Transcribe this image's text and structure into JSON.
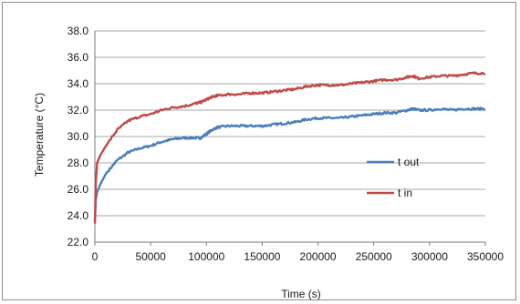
{
  "chart_data": {
    "type": "line",
    "title": "",
    "xlabel": "Time (s)",
    "ylabel": "Temperature (°C)",
    "xlim": [
      0,
      350000
    ],
    "ylim": [
      22.0,
      38.0
    ],
    "x_ticks": [
      "0",
      "50000",
      "100000",
      "150000",
      "200000",
      "250000",
      "300000",
      "350000"
    ],
    "y_ticks": [
      "22.0",
      "24.0",
      "26.0",
      "28.0",
      "30.0",
      "32.0",
      "34.0",
      "36.0",
      "38.0"
    ],
    "grid": "horizontal",
    "legend_position": "right",
    "series": [
      {
        "name": "t out",
        "color": "#4a7ebb",
        "points": [
          [
            0,
            23.6
          ],
          [
            800,
            25.2
          ],
          [
            2000,
            25.8
          ],
          [
            5000,
            26.4
          ],
          [
            10000,
            27.2
          ],
          [
            20000,
            28.2
          ],
          [
            30000,
            28.8
          ],
          [
            40000,
            29.1
          ],
          [
            50000,
            29.3
          ],
          [
            60000,
            29.6
          ],
          [
            70000,
            29.8
          ],
          [
            80000,
            29.9
          ],
          [
            90000,
            29.9
          ],
          [
            95000,
            29.9
          ],
          [
            100000,
            30.2
          ],
          [
            105000,
            30.5
          ],
          [
            110000,
            30.7
          ],
          [
            120000,
            30.8
          ],
          [
            130000,
            30.8
          ],
          [
            140000,
            30.8
          ],
          [
            150000,
            30.8
          ],
          [
            160000,
            30.9
          ],
          [
            170000,
            31.0
          ],
          [
            180000,
            31.1
          ],
          [
            190000,
            31.3
          ],
          [
            200000,
            31.4
          ],
          [
            210000,
            31.4
          ],
          [
            220000,
            31.4
          ],
          [
            230000,
            31.5
          ],
          [
            240000,
            31.6
          ],
          [
            250000,
            31.7
          ],
          [
            260000,
            31.8
          ],
          [
            270000,
            31.8
          ],
          [
            280000,
            32.0
          ],
          [
            285000,
            32.1
          ],
          [
            290000,
            32.0
          ],
          [
            300000,
            32.0
          ],
          [
            310000,
            32.1
          ],
          [
            320000,
            32.0
          ],
          [
            330000,
            32.1
          ],
          [
            340000,
            32.1
          ],
          [
            350000,
            32.1
          ]
        ]
      },
      {
        "name": "t in",
        "color": "#be4b48",
        "points": [
          [
            0,
            23.4
          ],
          [
            800,
            26.5
          ],
          [
            2000,
            28.0
          ],
          [
            5000,
            28.6
          ],
          [
            10000,
            29.3
          ],
          [
            20000,
            30.5
          ],
          [
            30000,
            31.2
          ],
          [
            40000,
            31.5
          ],
          [
            50000,
            31.7
          ],
          [
            60000,
            32.0
          ],
          [
            70000,
            32.2
          ],
          [
            80000,
            32.3
          ],
          [
            90000,
            32.5
          ],
          [
            95000,
            32.6
          ],
          [
            100000,
            32.8
          ],
          [
            105000,
            33.0
          ],
          [
            110000,
            33.1
          ],
          [
            120000,
            33.2
          ],
          [
            130000,
            33.2
          ],
          [
            140000,
            33.3
          ],
          [
            150000,
            33.3
          ],
          [
            160000,
            33.4
          ],
          [
            170000,
            33.5
          ],
          [
            180000,
            33.6
          ],
          [
            190000,
            33.8
          ],
          [
            200000,
            33.9
          ],
          [
            210000,
            33.9
          ],
          [
            220000,
            33.9
          ],
          [
            230000,
            34.0
          ],
          [
            240000,
            34.1
          ],
          [
            250000,
            34.2
          ],
          [
            260000,
            34.3
          ],
          [
            270000,
            34.3
          ],
          [
            280000,
            34.5
          ],
          [
            285000,
            34.6
          ],
          [
            290000,
            34.4
          ],
          [
            300000,
            34.5
          ],
          [
            310000,
            34.6
          ],
          [
            320000,
            34.6
          ],
          [
            330000,
            34.7
          ],
          [
            340000,
            34.8
          ],
          [
            350000,
            34.8
          ]
        ]
      }
    ]
  }
}
